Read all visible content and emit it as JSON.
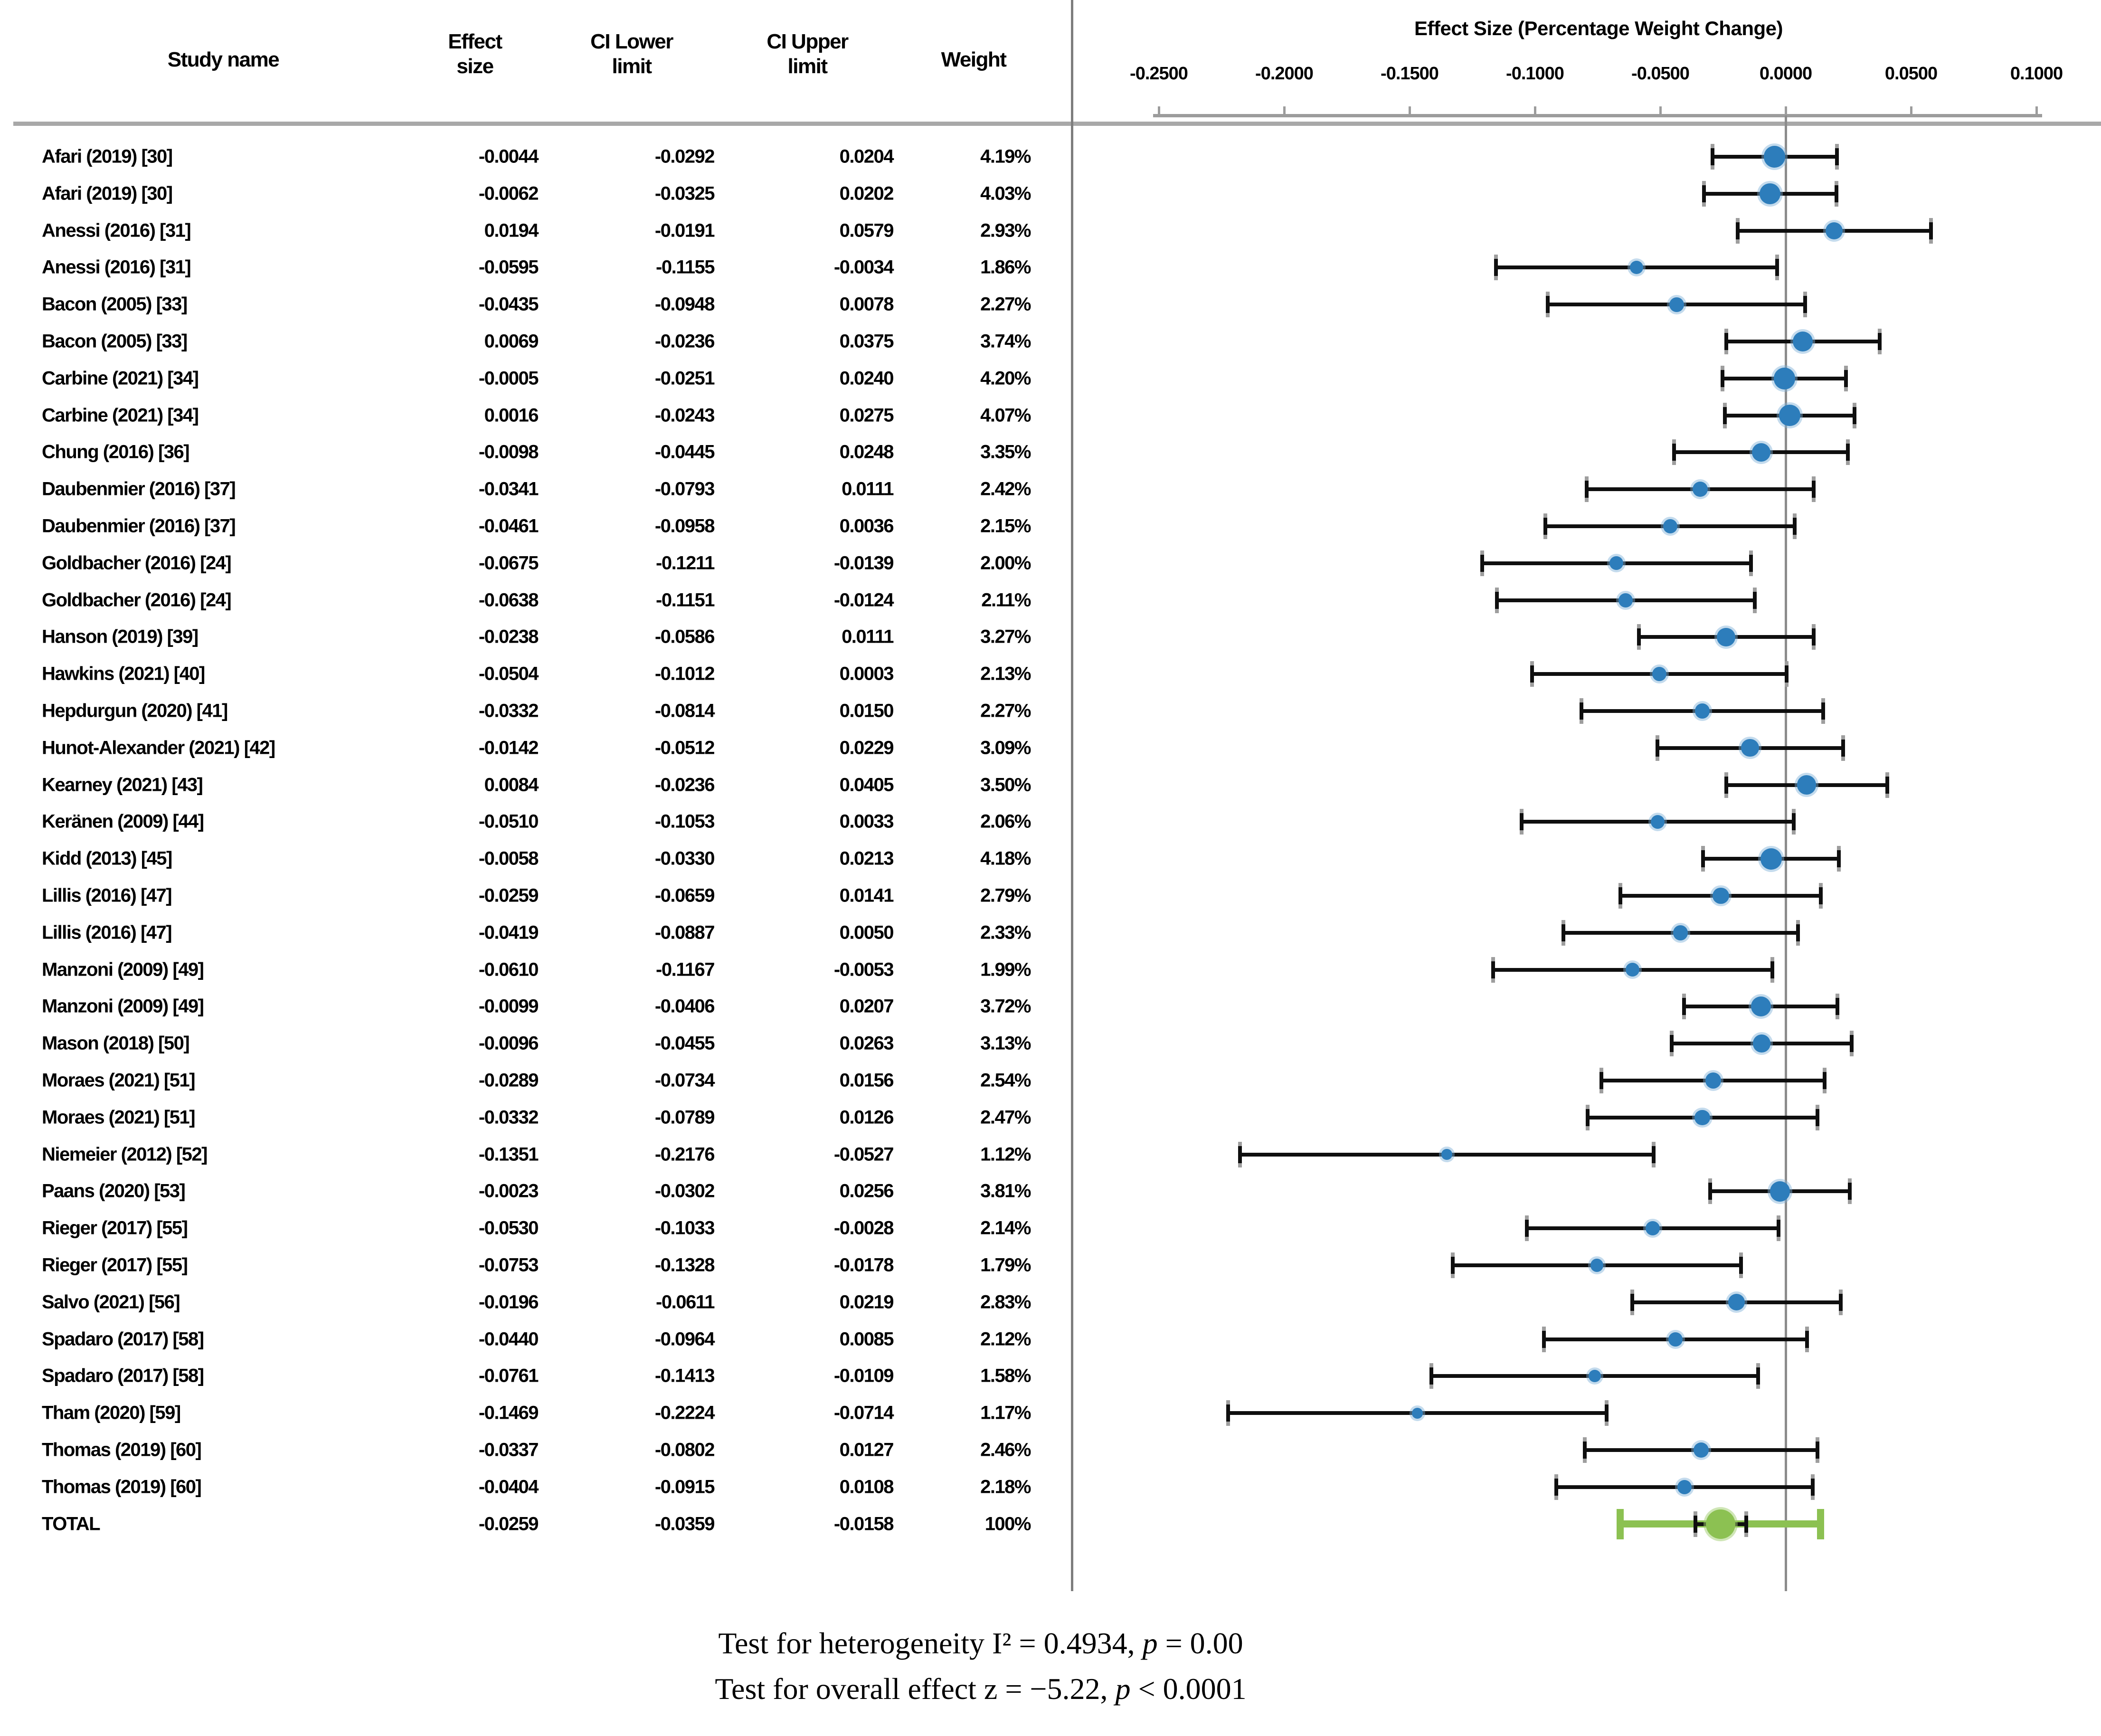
{
  "table": {
    "col_study": "Study name",
    "col_effect": "Effect\nsize",
    "col_ci_lower": "CI Lower\nlimit",
    "col_ci_upper": "CI Upper\nlimit",
    "col_weight": "Weight"
  },
  "chart_data": {
    "type": "forest",
    "title": "Effect Size (Percentage Weight Change)",
    "xlabel": "Effect Size (Percentage Weight Change)",
    "xlim": [
      -0.27,
      0.115
    ],
    "x_ticks": [
      -0.25,
      -0.2,
      -0.15,
      -0.1,
      -0.05,
      0,
      0.05,
      0.1
    ],
    "x_tick_labels": [
      "-0.2500",
      "-0.2000",
      "-0.1500",
      "-0.1000",
      "-0.0500",
      "0.0000",
      "0.0500",
      "0.1000"
    ],
    "grid": false,
    "marker_color": "#2d7dbb",
    "total_color": "#8cc152",
    "studies": [
      {
        "name": "Afari (2019) [30]",
        "effect": "-0.0044",
        "ci_lower": "-0.0292",
        "ci_upper": "0.0204",
        "weight": "4.19%"
      },
      {
        "name": "Afari (2019) [30]",
        "effect": "-0.0062",
        "ci_lower": "-0.0325",
        "ci_upper": "0.0202",
        "weight": "4.03%"
      },
      {
        "name": "Anessi (2016) [31]",
        "effect": "0.0194",
        "ci_lower": "-0.0191",
        "ci_upper": "0.0579",
        "weight": "2.93%"
      },
      {
        "name": "Anessi (2016) [31]",
        "effect": "-0.0595",
        "ci_lower": "-0.1155",
        "ci_upper": "-0.0034",
        "weight": "1.86%"
      },
      {
        "name": "Bacon (2005) [33]",
        "effect": "-0.0435",
        "ci_lower": "-0.0948",
        "ci_upper": "0.0078",
        "weight": "2.27%"
      },
      {
        "name": "Bacon (2005) [33]",
        "effect": "0.0069",
        "ci_lower": "-0.0236",
        "ci_upper": "0.0375",
        "weight": "3.74%"
      },
      {
        "name": "Carbine (2021) [34]",
        "effect": "-0.0005",
        "ci_lower": "-0.0251",
        "ci_upper": "0.0240",
        "weight": "4.20%"
      },
      {
        "name": "Carbine (2021) [34]",
        "effect": "0.0016",
        "ci_lower": "-0.0243",
        "ci_upper": "0.0275",
        "weight": "4.07%"
      },
      {
        "name": "Chung (2016) [36]",
        "effect": "-0.0098",
        "ci_lower": "-0.0445",
        "ci_upper": "0.0248",
        "weight": "3.35%"
      },
      {
        "name": "Daubenmier (2016) [37]",
        "effect": "-0.0341",
        "ci_lower": "-0.0793",
        "ci_upper": "0.0111",
        "weight": "2.42%"
      },
      {
        "name": "Daubenmier (2016) [37]",
        "effect": "-0.0461",
        "ci_lower": "-0.0958",
        "ci_upper": "0.0036",
        "weight": "2.15%"
      },
      {
        "name": "Goldbacher (2016) [24]",
        "effect": "-0.0675",
        "ci_lower": "-0.1211",
        "ci_upper": "-0.0139",
        "weight": "2.00%"
      },
      {
        "name": "Goldbacher (2016) [24]",
        "effect": "-0.0638",
        "ci_lower": "-0.1151",
        "ci_upper": "-0.0124",
        "weight": "2.11%"
      },
      {
        "name": "Hanson (2019) [39]",
        "effect": "-0.0238",
        "ci_lower": "-0.0586",
        "ci_upper": "0.0111",
        "weight": "3.27%"
      },
      {
        "name": "Hawkins (2021) [40]",
        "effect": "-0.0504",
        "ci_lower": "-0.1012",
        "ci_upper": "0.0003",
        "weight": "2.13%"
      },
      {
        "name": "Hepdurgun (2020) [41]",
        "effect": "-0.0332",
        "ci_lower": "-0.0814",
        "ci_upper": "0.0150",
        "weight": "2.27%"
      },
      {
        "name": "Hunot-Alexander (2021) [42]",
        "effect": "-0.0142",
        "ci_lower": "-0.0512",
        "ci_upper": "0.0229",
        "weight": "3.09%"
      },
      {
        "name": "Kearney (2021) [43]",
        "effect": "0.0084",
        "ci_lower": "-0.0236",
        "ci_upper": "0.0405",
        "weight": "3.50%"
      },
      {
        "name": "Keränen (2009) [44]",
        "effect": "-0.0510",
        "ci_lower": "-0.1053",
        "ci_upper": "0.0033",
        "weight": "2.06%"
      },
      {
        "name": "Kidd (2013) [45]",
        "effect": "-0.0058",
        "ci_lower": "-0.0330",
        "ci_upper": "0.0213",
        "weight": "4.18%"
      },
      {
        "name": "Lillis (2016) [47]",
        "effect": "-0.0259",
        "ci_lower": "-0.0659",
        "ci_upper": "0.0141",
        "weight": "2.79%"
      },
      {
        "name": "Lillis (2016) [47]",
        "effect": "-0.0419",
        "ci_lower": "-0.0887",
        "ci_upper": "0.0050",
        "weight": "2.33%"
      },
      {
        "name": "Manzoni (2009) [49]",
        "effect": "-0.0610",
        "ci_lower": "-0.1167",
        "ci_upper": "-0.0053",
        "weight": "1.99%"
      },
      {
        "name": "Manzoni (2009) [49]",
        "effect": "-0.0099",
        "ci_lower": "-0.0406",
        "ci_upper": "0.0207",
        "weight": "3.72%"
      },
      {
        "name": "Mason (2018) [50]",
        "effect": "-0.0096",
        "ci_lower": "-0.0455",
        "ci_upper": "0.0263",
        "weight": "3.13%"
      },
      {
        "name": "Moraes (2021) [51]",
        "effect": "-0.0289",
        "ci_lower": "-0.0734",
        "ci_upper": "0.0156",
        "weight": "2.54%"
      },
      {
        "name": "Moraes (2021) [51]",
        "effect": "-0.0332",
        "ci_lower": "-0.0789",
        "ci_upper": "0.0126",
        "weight": "2.47%"
      },
      {
        "name": "Niemeier (2012) [52]",
        "effect": "-0.1351",
        "ci_lower": "-0.2176",
        "ci_upper": "-0.0527",
        "weight": "1.12%"
      },
      {
        "name": "Paans (2020) [53]",
        "effect": "-0.0023",
        "ci_lower": "-0.0302",
        "ci_upper": "0.0256",
        "weight": "3.81%"
      },
      {
        "name": "Rieger (2017) [55]",
        "effect": "-0.0530",
        "ci_lower": "-0.1033",
        "ci_upper": "-0.0028",
        "weight": "2.14%"
      },
      {
        "name": "Rieger (2017) [55]",
        "effect": "-0.0753",
        "ci_lower": "-0.1328",
        "ci_upper": "-0.0178",
        "weight": "1.79%"
      },
      {
        "name": "Salvo (2021) [56]",
        "effect": "-0.0196",
        "ci_lower": "-0.0611",
        "ci_upper": "0.0219",
        "weight": "2.83%"
      },
      {
        "name": "Spadaro (2017) [58]",
        "effect": "-0.0440",
        "ci_lower": "-0.0964",
        "ci_upper": "0.0085",
        "weight": "2.12%"
      },
      {
        "name": "Spadaro (2017) [58]",
        "effect": "-0.0761",
        "ci_lower": "-0.1413",
        "ci_upper": "-0.0109",
        "weight": "1.58%"
      },
      {
        "name": "Tham (2020) [59]",
        "effect": "-0.1469",
        "ci_lower": "-0.2224",
        "ci_upper": "-0.0714",
        "weight": "1.17%"
      },
      {
        "name": "Thomas (2019) [60]",
        "effect": "-0.0337",
        "ci_lower": "-0.0802",
        "ci_upper": "0.0127",
        "weight": "2.46%"
      },
      {
        "name": "Thomas (2019) [60]",
        "effect": "-0.0404",
        "ci_lower": "-0.0915",
        "ci_upper": "0.0108",
        "weight": "2.18%"
      }
    ],
    "total": {
      "name": "TOTAL",
      "effect": "-0.0259",
      "ci_lower": "-0.0359",
      "ci_upper": "-0.0158",
      "weight": "100%",
      "interval_lower": "-0.066",
      "interval_upper": "0.014"
    }
  },
  "footer": {
    "line1": {
      "text1": "Test for heterogeneity I² = 0.4934, ",
      "p": "p",
      "text2": " = 0.00"
    },
    "line2": {
      "text1": "Test for overall effect z = −5.22, ",
      "p": "p",
      "text2": " < 0.0001"
    }
  }
}
